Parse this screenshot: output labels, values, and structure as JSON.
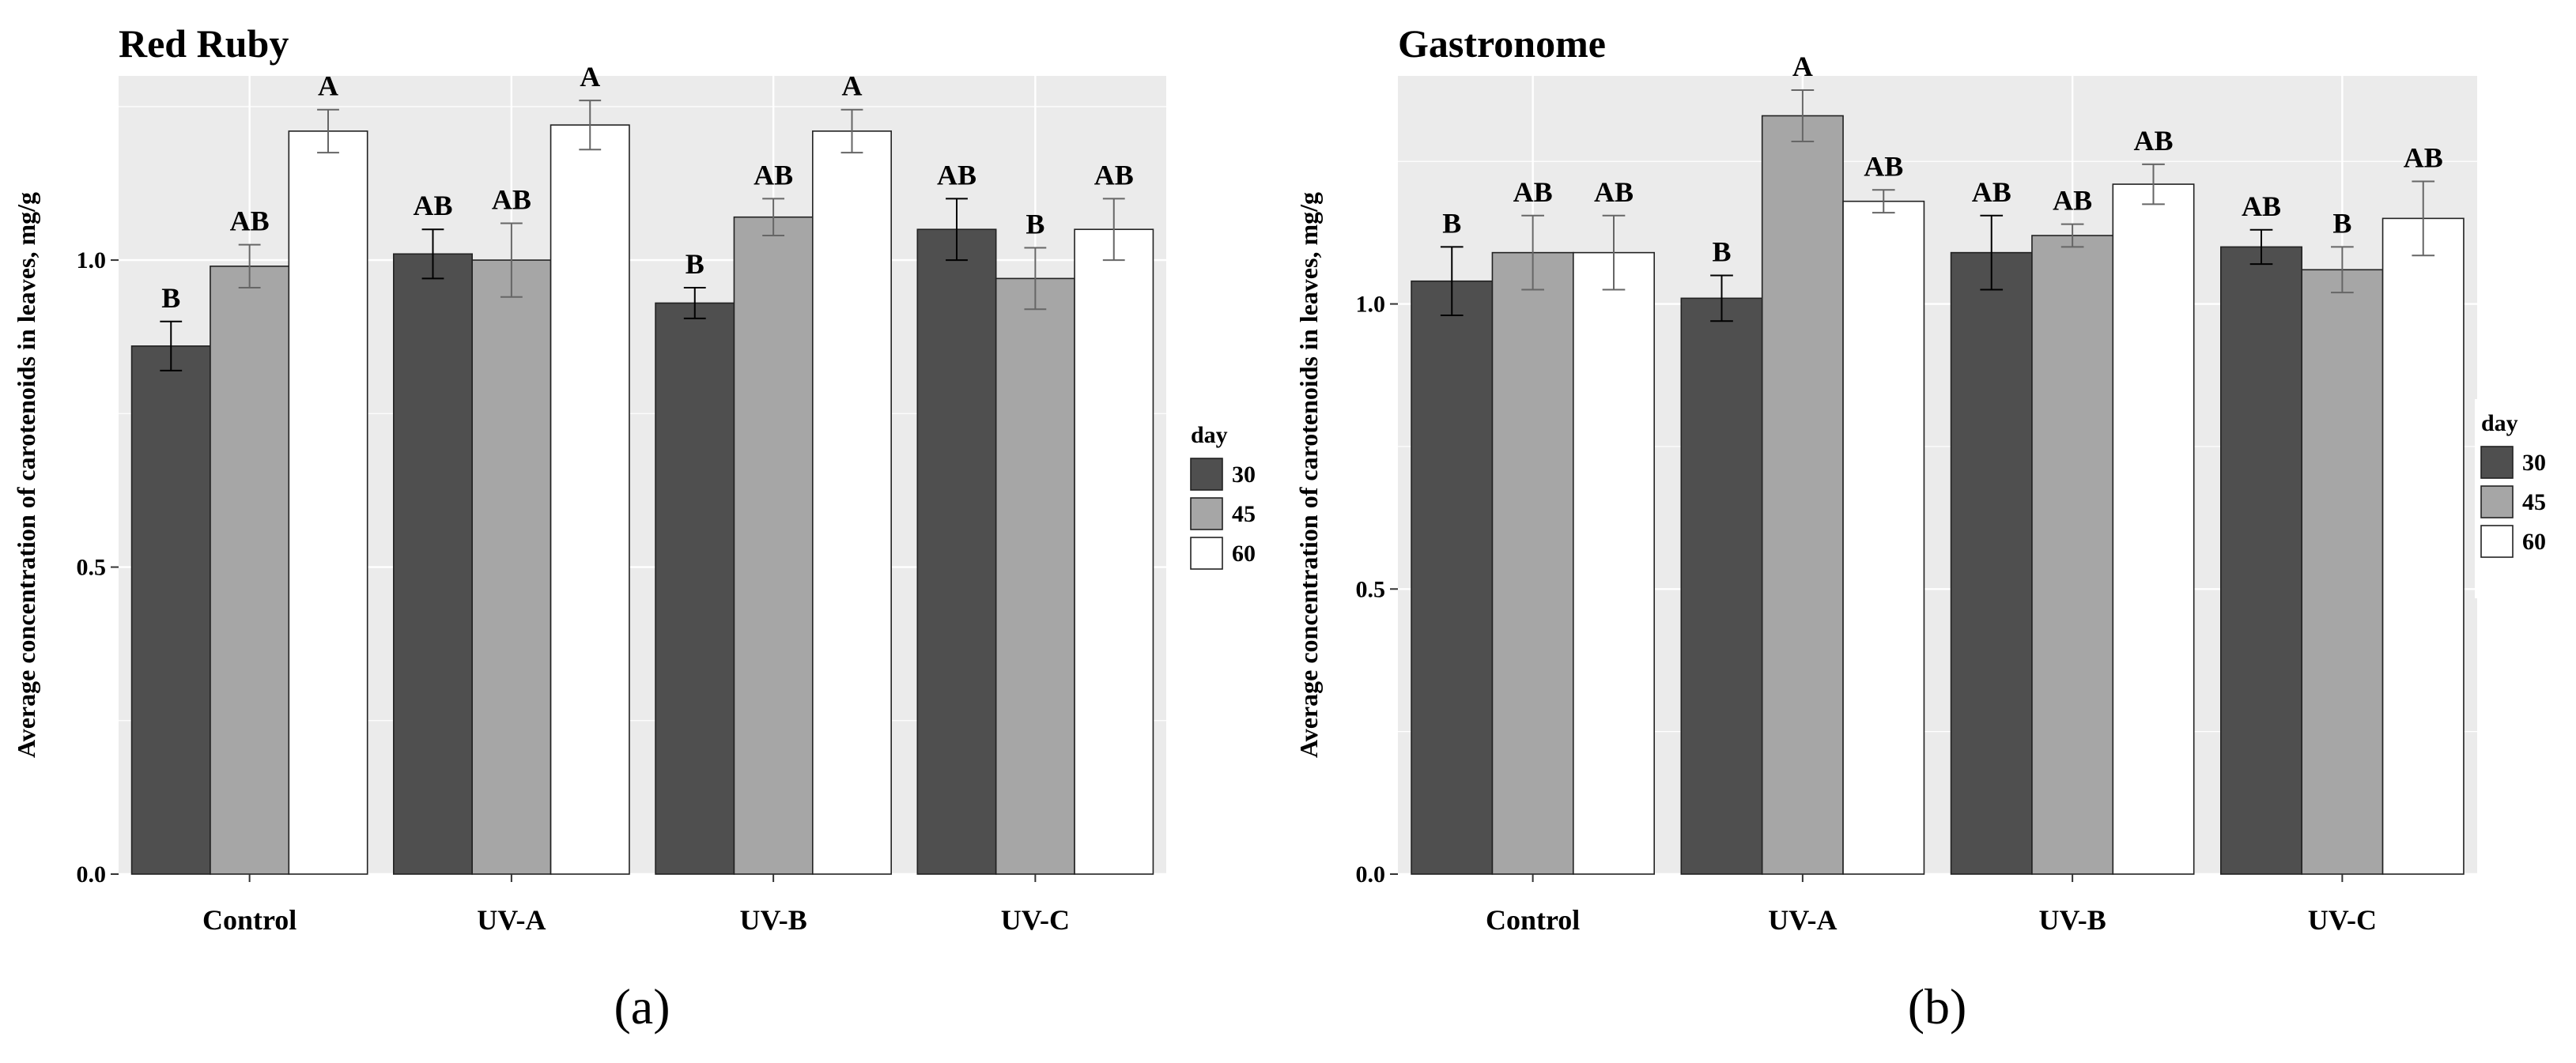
{
  "chart_data": [
    {
      "type": "bar",
      "title": "Red Ruby",
      "subfigure_label": "(a)",
      "xlabel": "",
      "ylabel": "Average concentration of carotenoids in leaves, mg/g",
      "ylim": [
        0,
        1.3
      ],
      "yticks": [
        "0.0",
        "0.5",
        "1.0"
      ],
      "yticks_values": [
        0.0,
        0.5,
        1.0
      ],
      "grid": true,
      "legend_title": "day",
      "legend_position": "right",
      "categories": [
        "Control",
        "UV-A",
        "UV-B",
        "UV-C"
      ],
      "series": [
        {
          "name": "30",
          "color": "#4f4f4f",
          "values": [
            0.86,
            1.01,
            0.93,
            1.05
          ],
          "errors": [
            0.04,
            0.04,
            0.025,
            0.05
          ],
          "labels": [
            "B",
            "AB",
            "B",
            "AB"
          ]
        },
        {
          "name": "45",
          "color": "#a6a6a6",
          "values": [
            0.99,
            1.0,
            1.07,
            0.97
          ],
          "errors": [
            0.035,
            0.06,
            0.03,
            0.05
          ],
          "labels": [
            "AB",
            "AB",
            "AB",
            "B"
          ]
        },
        {
          "name": "60",
          "color": "#ffffff",
          "values": [
            1.21,
            1.22,
            1.21,
            1.05
          ],
          "errors": [
            0.035,
            0.04,
            0.035,
            0.05
          ],
          "labels": [
            "A",
            "A",
            "A",
            "AB"
          ]
        }
      ]
    },
    {
      "type": "bar",
      "title": "Gastronome",
      "subfigure_label": "(b)",
      "xlabel": "",
      "ylabel": "Average concentration of carotenoids in leaves, mg/g",
      "ylim": [
        0,
        1.4
      ],
      "yticks": [
        "0.0",
        "0.5",
        "1.0"
      ],
      "yticks_values": [
        0.0,
        0.5,
        1.0
      ],
      "grid": true,
      "legend_title": "day",
      "legend_position": "right",
      "categories": [
        "Control",
        "UV-A",
        "UV-B",
        "UV-C"
      ],
      "series": [
        {
          "name": "30",
          "color": "#4f4f4f",
          "values": [
            1.04,
            1.01,
            1.09,
            1.1
          ],
          "errors": [
            0.06,
            0.04,
            0.065,
            0.03
          ],
          "labels": [
            "B",
            "B",
            "AB",
            "AB"
          ]
        },
        {
          "name": "45",
          "color": "#a6a6a6",
          "values": [
            1.09,
            1.33,
            1.12,
            1.06
          ],
          "errors": [
            0.065,
            0.045,
            0.02,
            0.04
          ],
          "labels": [
            "AB",
            "A",
            "AB",
            "B"
          ]
        },
        {
          "name": "60",
          "color": "#ffffff",
          "values": [
            1.09,
            1.18,
            1.21,
            1.15
          ],
          "errors": [
            0.065,
            0.02,
            0.035,
            0.065
          ],
          "labels": [
            "AB",
            "AB",
            "AB",
            "AB"
          ]
        }
      ]
    }
  ]
}
